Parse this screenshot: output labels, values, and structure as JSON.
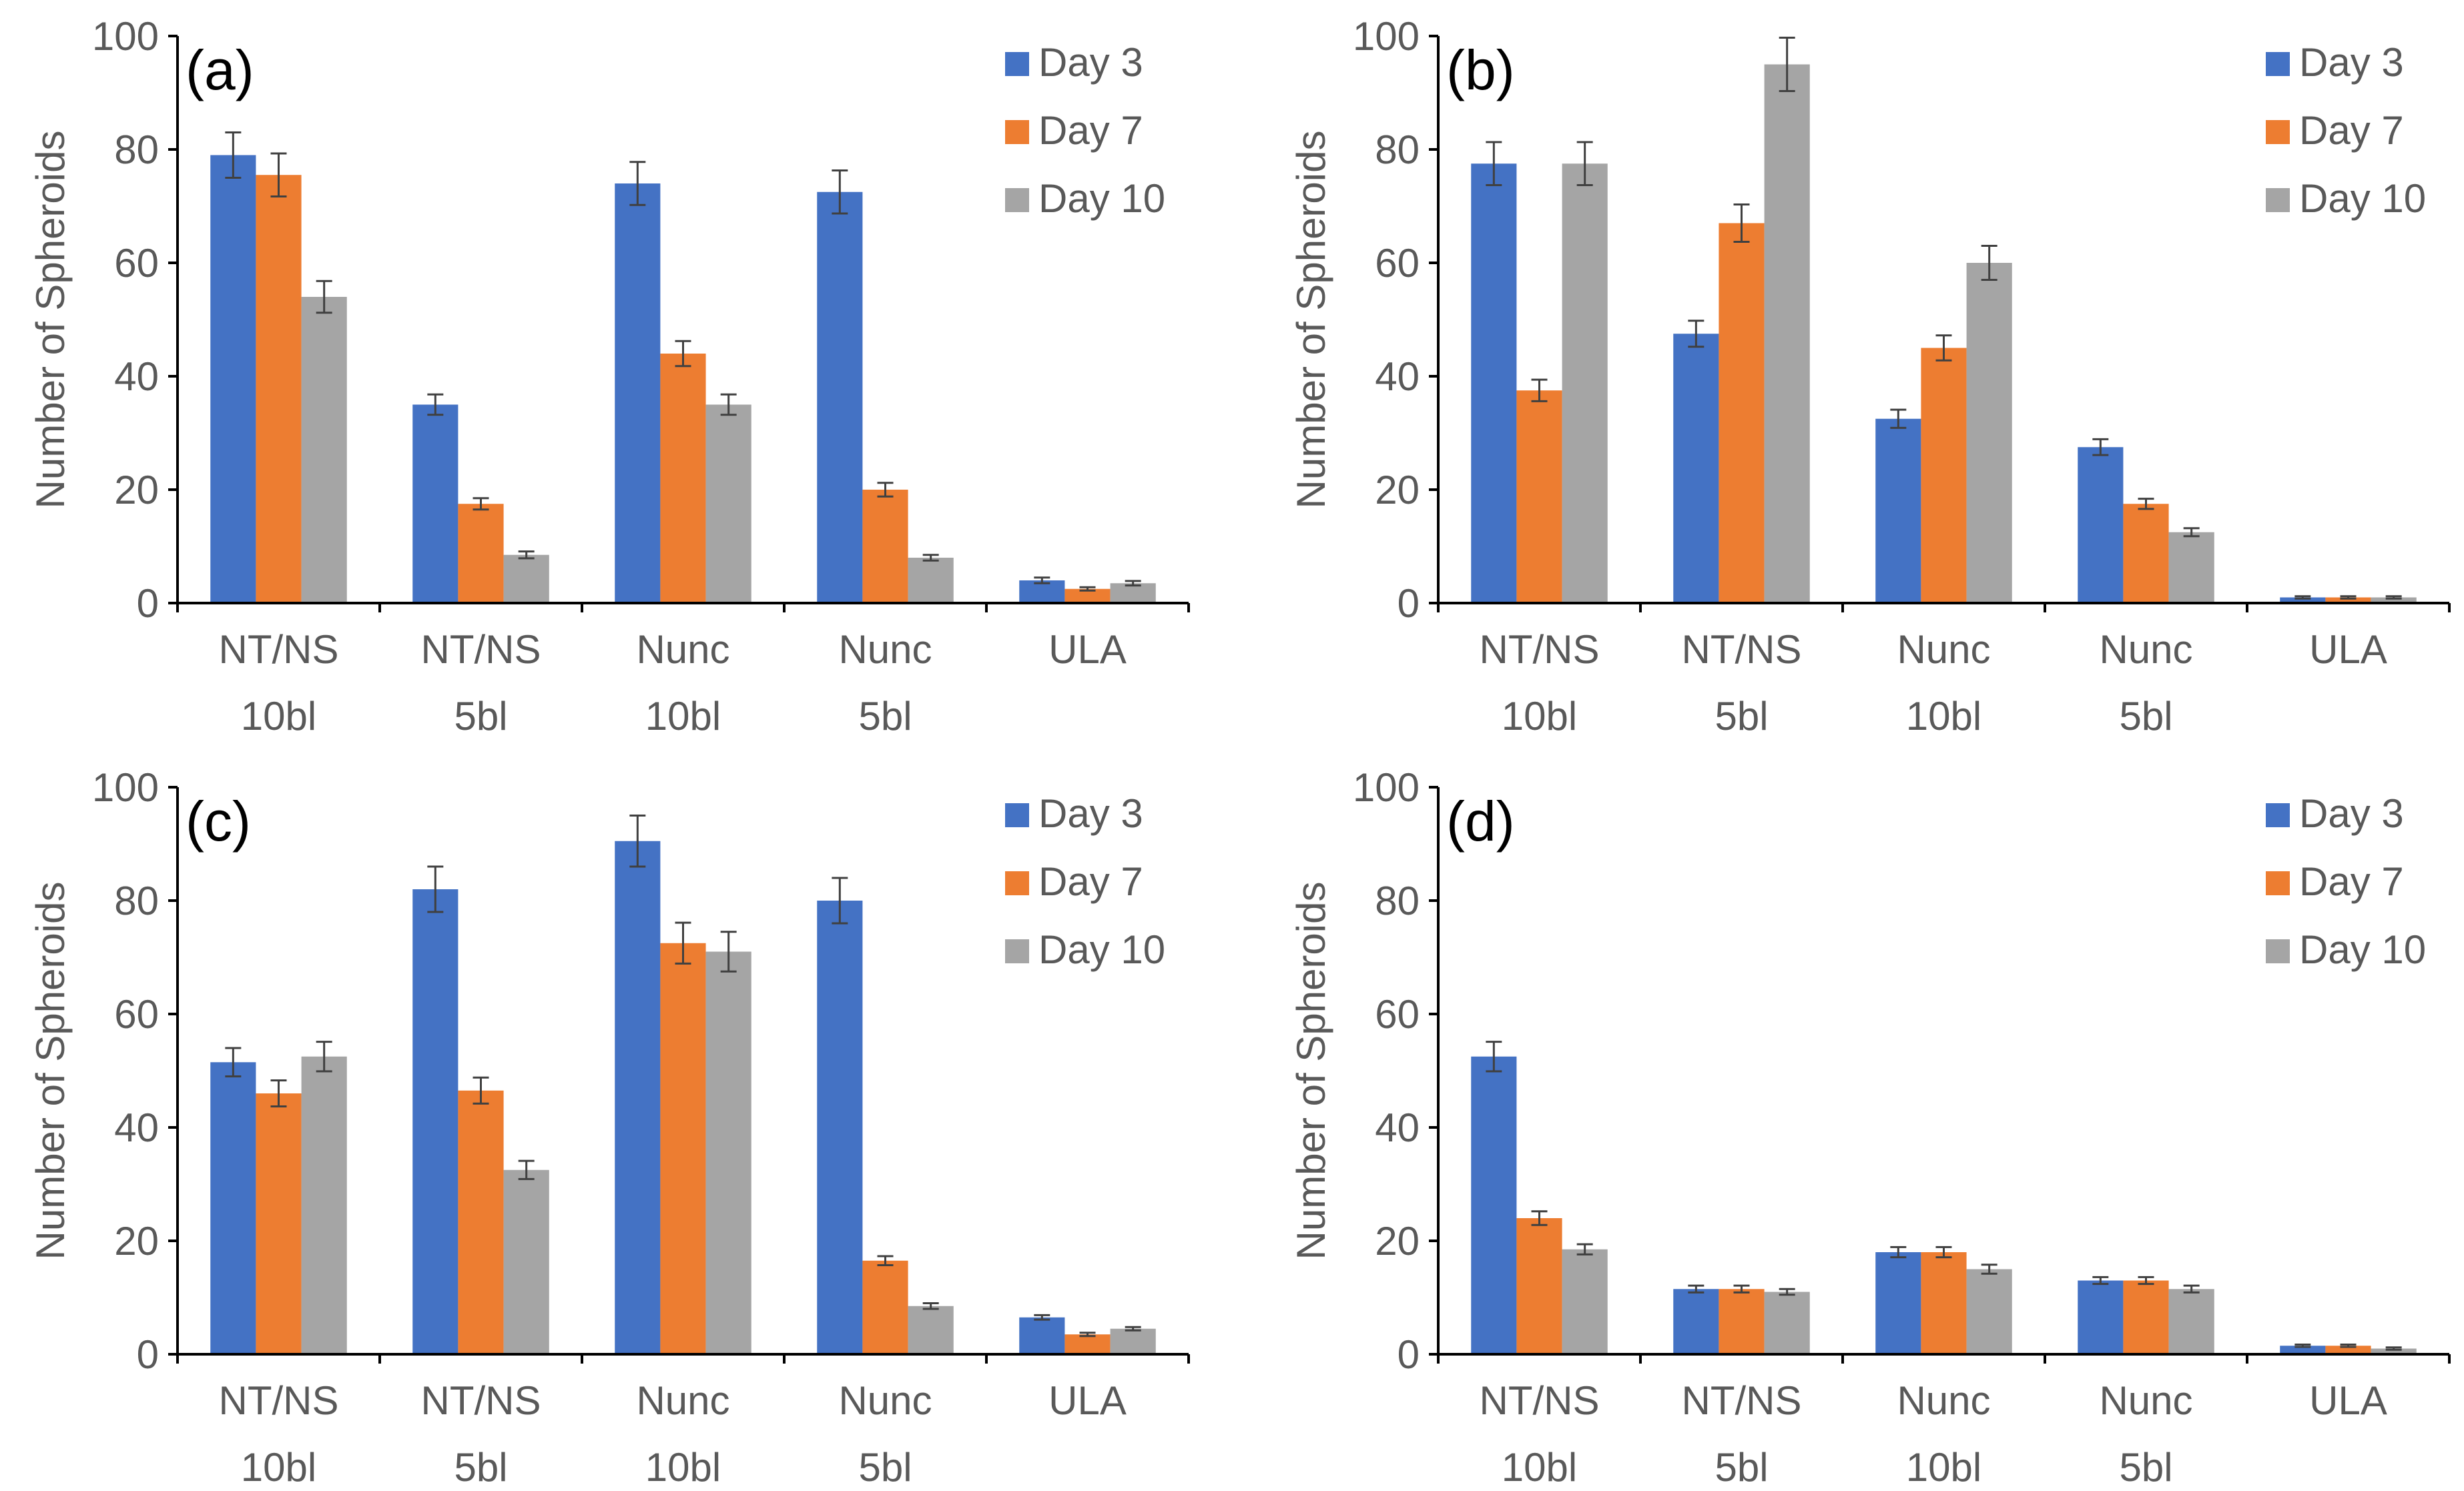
{
  "colors": {
    "day3": "#4472C4",
    "day7": "#ED7D31",
    "day10": "#A5A5A5",
    "axis": "#000000",
    "text": "#595959",
    "errorbar": "#404040"
  },
  "chart_data": [
    {
      "type": "bar",
      "title": "(a)",
      "xlabel": "",
      "ylabel": "Number of Spheroids",
      "ylim": [
        0,
        100
      ],
      "yticks": [
        0,
        20,
        40,
        60,
        80,
        100
      ],
      "legend_position": "top-right",
      "categories": [
        [
          "NT/NS",
          "10bl"
        ],
        [
          "NT/NS",
          "5bl"
        ],
        [
          "Nunc",
          "10bl"
        ],
        [
          "Nunc",
          "5bl"
        ],
        [
          "ULA"
        ]
      ],
      "series": [
        {
          "name": "Day 3",
          "color": "#4472C4",
          "values": [
            79,
            35,
            74,
            72.5,
            4
          ],
          "errors": [
            4,
            1.8,
            3.8,
            3.8,
            0.5
          ]
        },
        {
          "name": "Day 7",
          "color": "#ED7D31",
          "values": [
            75.5,
            17.5,
            44,
            20,
            2.5
          ],
          "errors": [
            3.8,
            1,
            2.2,
            1.2,
            0.3
          ]
        },
        {
          "name": "Day 10",
          "color": "#A5A5A5",
          "values": [
            54,
            8.5,
            35,
            8,
            3.5
          ],
          "errors": [
            2.8,
            0.6,
            1.8,
            0.5,
            0.4
          ]
        }
      ]
    },
    {
      "type": "bar",
      "title": "(b)",
      "xlabel": "",
      "ylabel": "Number of Spheroids",
      "ylim": [
        0,
        100
      ],
      "yticks": [
        0,
        20,
        40,
        60,
        80,
        100
      ],
      "legend_position": "top-right",
      "categories": [
        [
          "NT/NS",
          "10bl"
        ],
        [
          "NT/NS",
          "5bl"
        ],
        [
          "Nunc",
          "10bl"
        ],
        [
          "Nunc",
          "5bl"
        ],
        [
          "ULA"
        ]
      ],
      "series": [
        {
          "name": "Day 3",
          "color": "#4472C4",
          "values": [
            77.5,
            47.5,
            32.5,
            27.5,
            1
          ],
          "errors": [
            3.8,
            2.3,
            1.6,
            1.4,
            0.2
          ]
        },
        {
          "name": "Day 7",
          "color": "#ED7D31",
          "values": [
            37.5,
            67,
            45,
            17.5,
            1
          ],
          "errors": [
            1.9,
            3.3,
            2.2,
            0.9,
            0.2
          ]
        },
        {
          "name": "Day 10",
          "color": "#A5A5A5",
          "values": [
            77.5,
            95,
            60,
            12.5,
            1
          ],
          "errors": [
            3.8,
            4.7,
            3,
            0.7,
            0.2
          ]
        }
      ]
    },
    {
      "type": "bar",
      "title": "(c)",
      "xlabel": "",
      "ylabel": "Number of Spheroids",
      "ylim": [
        0,
        100
      ],
      "yticks": [
        0,
        20,
        40,
        60,
        80,
        100
      ],
      "legend_position": "top-right",
      "categories": [
        [
          "NT/NS",
          "10bl"
        ],
        [
          "NT/NS",
          "5bl"
        ],
        [
          "Nunc",
          "10bl"
        ],
        [
          "Nunc",
          "5bl"
        ],
        [
          "ULA"
        ]
      ],
      "series": [
        {
          "name": "Day 3",
          "color": "#4472C4",
          "values": [
            51.5,
            82,
            90.5,
            80,
            6.5
          ],
          "errors": [
            2.5,
            4,
            4.5,
            4,
            0.4
          ]
        },
        {
          "name": "Day 7",
          "color": "#ED7D31",
          "values": [
            46,
            46.5,
            72.5,
            16.5,
            3.5
          ],
          "errors": [
            2.3,
            2.3,
            3.6,
            0.8,
            0.3
          ]
        },
        {
          "name": "Day 10",
          "color": "#A5A5A5",
          "values": [
            52.5,
            32.5,
            71,
            8.5,
            4.5
          ],
          "errors": [
            2.6,
            1.6,
            3.5,
            0.5,
            0.3
          ]
        }
      ]
    },
    {
      "type": "bar",
      "title": "(d)",
      "xlabel": "",
      "ylabel": "Number of Spheroids",
      "ylim": [
        0,
        100
      ],
      "yticks": [
        0,
        20,
        40,
        60,
        80,
        100
      ],
      "legend_position": "top-right",
      "categories": [
        [
          "NT/NS",
          "10bl"
        ],
        [
          "NT/NS",
          "5bl"
        ],
        [
          "Nunc",
          "10bl"
        ],
        [
          "Nunc",
          "5bl"
        ],
        [
          "ULA"
        ]
      ],
      "series": [
        {
          "name": "Day 3",
          "color": "#4472C4",
          "values": [
            52.5,
            11.5,
            18,
            13,
            1.5
          ],
          "errors": [
            2.6,
            0.6,
            0.9,
            0.6,
            0.2
          ]
        },
        {
          "name": "Day 7",
          "color": "#ED7D31",
          "values": [
            24,
            11.5,
            18,
            13,
            1.5
          ],
          "errors": [
            1.2,
            0.6,
            0.9,
            0.6,
            0.2
          ]
        },
        {
          "name": "Day 10",
          "color": "#A5A5A5",
          "values": [
            18.5,
            11,
            15,
            11.5,
            1
          ],
          "errors": [
            0.9,
            0.5,
            0.8,
            0.6,
            0.2
          ]
        }
      ]
    }
  ]
}
